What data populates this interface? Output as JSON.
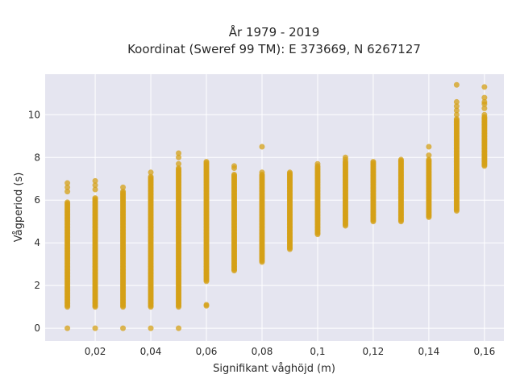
{
  "chart_data": {
    "type": "scatter",
    "title": "År 1979 - 2019",
    "subtitle": "Koordinat (Sweref 99 TM): E 373669, N 6267127",
    "xlabel": "Signifikant våghöjd (m)",
    "ylabel": "Vågperiod (s)",
    "xlim": [
      0.002,
      0.167
    ],
    "ylim": [
      -0.6,
      11.9
    ],
    "x_ticks": [
      0.02,
      0.04,
      0.06,
      0.08,
      0.1,
      0.12,
      0.14,
      0.16
    ],
    "x_tick_labels": [
      "0,02",
      "0,04",
      "0,06",
      "0,08",
      "0,1",
      "0,12",
      "0,14",
      "0,16"
    ],
    "y_ticks": [
      0,
      2,
      4,
      6,
      8,
      10
    ],
    "y_tick_labels": [
      "0",
      "2",
      "4",
      "6",
      "8",
      "10"
    ],
    "grid": true,
    "marker_color": "#d4a017",
    "plot_background": "#e5e5f0",
    "ranges": [
      {
        "x": 0.01,
        "y_min": 1.0,
        "y_max": 5.9
      },
      {
        "x": 0.02,
        "y_min": 1.0,
        "y_max": 6.1
      },
      {
        "x": 0.03,
        "y_min": 1.0,
        "y_max": 6.4
      },
      {
        "x": 0.04,
        "y_min": 1.0,
        "y_max": 7.1
      },
      {
        "x": 0.05,
        "y_min": 1.0,
        "y_max": 7.5
      },
      {
        "x": 0.06,
        "y_min": 2.2,
        "y_max": 7.8
      },
      {
        "x": 0.07,
        "y_min": 2.7,
        "y_max": 7.2
      },
      {
        "x": 0.08,
        "y_min": 3.1,
        "y_max": 7.2
      },
      {
        "x": 0.09,
        "y_min": 3.7,
        "y_max": 7.3
      },
      {
        "x": 0.1,
        "y_min": 4.4,
        "y_max": 7.6
      },
      {
        "x": 0.11,
        "y_min": 4.8,
        "y_max": 7.8
      },
      {
        "x": 0.12,
        "y_min": 5.0,
        "y_max": 7.8
      },
      {
        "x": 0.13,
        "y_min": 5.0,
        "y_max": 7.9
      },
      {
        "x": 0.14,
        "y_min": 5.2,
        "y_max": 7.9
      },
      {
        "x": 0.15,
        "y_min": 5.5,
        "y_max": 9.8
      },
      {
        "x": 0.16,
        "y_min": 7.6,
        "y_max": 9.9
      }
    ],
    "points": [
      {
        "x": 0.01,
        "y": 0
      },
      {
        "x": 0.01,
        "y": 6.8
      },
      {
        "x": 0.01,
        "y": 6.6
      },
      {
        "x": 0.01,
        "y": 6.4
      },
      {
        "x": 0.02,
        "y": 0
      },
      {
        "x": 0.02,
        "y": 6.9
      },
      {
        "x": 0.02,
        "y": 6.7
      },
      {
        "x": 0.02,
        "y": 6.5
      },
      {
        "x": 0.03,
        "y": 0
      },
      {
        "x": 0.03,
        "y": 6.6
      },
      {
        "x": 0.04,
        "y": 0
      },
      {
        "x": 0.04,
        "y": 7.3
      },
      {
        "x": 0.05,
        "y": 0
      },
      {
        "x": 0.05,
        "y": 8.2
      },
      {
        "x": 0.05,
        "y": 8.0
      },
      {
        "x": 0.05,
        "y": 7.7
      },
      {
        "x": 0.06,
        "y": 1.1
      },
      {
        "x": 0.06,
        "y": 1.05
      },
      {
        "x": 0.07,
        "y": 7.6
      },
      {
        "x": 0.07,
        "y": 7.5
      },
      {
        "x": 0.08,
        "y": 8.5
      },
      {
        "x": 0.08,
        "y": 7.3
      },
      {
        "x": 0.1,
        "y": 7.7
      },
      {
        "x": 0.11,
        "y": 8.0
      },
      {
        "x": 0.11,
        "y": 7.9
      },
      {
        "x": 0.14,
        "y": 8.5
      },
      {
        "x": 0.14,
        "y": 8.1
      },
      {
        "x": 0.15,
        "y": 11.4
      },
      {
        "x": 0.15,
        "y": 10.6
      },
      {
        "x": 0.15,
        "y": 10.4
      },
      {
        "x": 0.15,
        "y": 10.2
      },
      {
        "x": 0.15,
        "y": 10.0
      },
      {
        "x": 0.16,
        "y": 11.3
      },
      {
        "x": 0.16,
        "y": 10.8
      },
      {
        "x": 0.16,
        "y": 10.6
      },
      {
        "x": 0.16,
        "y": 10.5
      },
      {
        "x": 0.16,
        "y": 10.3
      },
      {
        "x": 0.16,
        "y": 10.0
      }
    ]
  }
}
